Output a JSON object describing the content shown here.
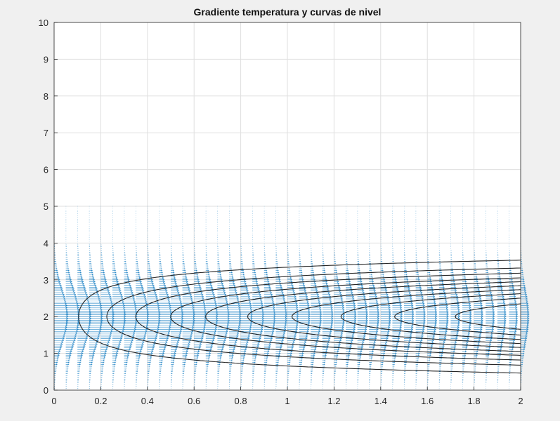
{
  "chart_data": {
    "type": "quiver+contour",
    "title": "Gradiente temperatura y curvas de nivel",
    "xlabel": "",
    "ylabel": "",
    "xlim": [
      0,
      2
    ],
    "ylim": [
      0,
      10
    ],
    "xticks": [
      0,
      0.2,
      0.4,
      0.6,
      0.8,
      1,
      1.2,
      1.4,
      1.6,
      1.8,
      2
    ],
    "xtick_labels": [
      "0",
      "0.2",
      "0.4",
      "0.6",
      "0.8",
      "1",
      "1.2",
      "1.4",
      "1.6",
      "1.8",
      "2"
    ],
    "yticks": [
      0,
      1,
      2,
      3,
      4,
      5,
      6,
      7,
      8,
      9,
      10
    ],
    "ytick_labels": [
      "0",
      "1",
      "2",
      "3",
      "4",
      "5",
      "6",
      "7",
      "8",
      "9",
      "10"
    ],
    "grid": true,
    "quiver": {
      "color": "#0072BD",
      "x_range": [
        0,
        2
      ],
      "x_step": 0.05,
      "y_range": [
        0,
        5
      ],
      "y_step": 0.05,
      "direction": "+x",
      "peak_y": 2
    },
    "contours": {
      "color": "#262626",
      "center_y": 2,
      "vertex_x": [
        0.105,
        0.226,
        0.35,
        0.5,
        0.65,
        0.83,
        1.02,
        1.23,
        1.46,
        1.72
      ]
    }
  }
}
